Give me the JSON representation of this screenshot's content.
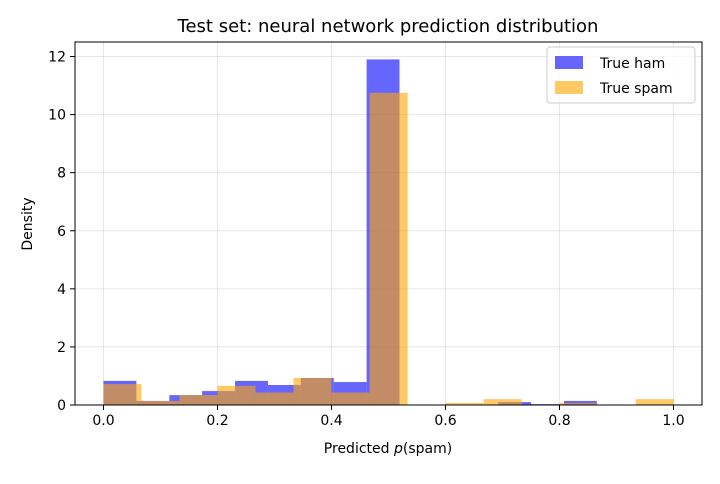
{
  "chart_data": {
    "type": "histogram",
    "title": "Test set: neural network prediction distribution",
    "xlabel": "Predicted p(spam)",
    "ylabel": "Density",
    "xlim": [
      -0.05,
      1.05
    ],
    "ylim": [
      0,
      12.5
    ],
    "xticks": [
      0.0,
      0.2,
      0.4,
      0.6,
      0.8,
      1.0
    ],
    "xtick_labels": [
      "0.0",
      "0.2",
      "0.4",
      "0.6",
      "0.8",
      "1.0"
    ],
    "yticks": [
      0,
      2,
      4,
      6,
      8,
      10,
      12
    ],
    "ytick_labels": [
      "0",
      "2",
      "4",
      "6",
      "8",
      "10",
      "12"
    ],
    "grid": true,
    "legend_position": "top-right",
    "series": [
      {
        "name": "True ham",
        "color": "#6666ff",
        "bin_start": 0.0,
        "bin_width": 0.0577,
        "values": [
          0.83,
          0.14,
          0.34,
          0.48,
          0.83,
          0.69,
          0.93,
          0.79,
          11.9,
          0,
          0,
          0,
          0.1,
          0.03,
          0.14
        ]
      },
      {
        "name": "True spam",
        "color": "#ffc966",
        "bin_start": 0.0,
        "bin_width": 0.0667,
        "values": [
          0.72,
          0.14,
          0.34,
          0.66,
          0.43,
          0.93,
          0.43,
          10.75,
          0,
          0.07,
          0.2,
          0,
          0.07,
          0,
          0.2
        ]
      }
    ]
  }
}
